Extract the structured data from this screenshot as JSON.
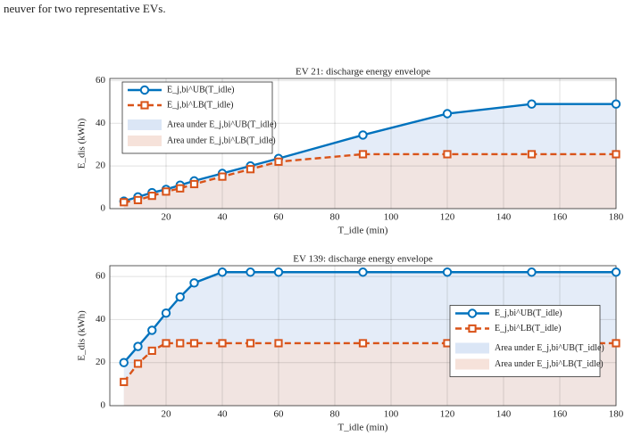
{
  "caption": "neuver for two representative EVs.",
  "chart_data": [
    {
      "type": "line",
      "title": "EV 21: discharge energy envelope",
      "x_label": "T_idle (min)",
      "y_label": "E_dis (kWh)",
      "x": [
        5,
        10,
        15,
        20,
        25,
        30,
        40,
        50,
        60,
        90,
        120,
        150,
        180
      ],
      "series": [
        {
          "name": "E_j,bi^UB(T_idle)",
          "area_label": "Area under E_j,bi^UB(T_idle)",
          "color": "#0072bd",
          "area_color": "#dbe6f6",
          "marker": "circle",
          "dash": false,
          "values": [
            3.5,
            5.5,
            7.5,
            9,
            11,
            13,
            16.5,
            20,
            23.5,
            34.5,
            44.5,
            49,
            49
          ]
        },
        {
          "name": "E_j,bi^LB(T_idle)",
          "area_label": "Area under E_j,bi^LB(T_idle)",
          "color": "#d95319",
          "area_color": "#f6e2da",
          "marker": "square",
          "dash": true,
          "values": [
            3,
            4,
            6,
            8,
            9.5,
            11.5,
            15,
            18.5,
            22,
            25.5,
            25.5,
            25.5,
            25.5
          ]
        }
      ],
      "xlim": [
        0,
        180
      ],
      "xticks": [
        20,
        40,
        60,
        80,
        100,
        120,
        140,
        160,
        180
      ],
      "ylim": [
        0,
        61
      ],
      "yticks": [
        0,
        20,
        40,
        60
      ],
      "grid": true,
      "legend": "upper left"
    },
    {
      "type": "line",
      "title": "EV 139: discharge energy envelope",
      "x_label": "T_idle (min)",
      "y_label": "E_dis (kWh)",
      "x": [
        5,
        10,
        15,
        20,
        25,
        30,
        40,
        50,
        60,
        90,
        120,
        150,
        180
      ],
      "series": [
        {
          "name": "E_j,bi^UB(T_idle)",
          "area_label": "Area under E_j,bi^UB(T_idle)",
          "color": "#0072bd",
          "area_color": "#dbe6f6",
          "marker": "circle",
          "dash": false,
          "values": [
            20,
            27.5,
            35,
            43,
            50.5,
            57,
            62,
            62,
            62,
            62,
            62,
            62,
            62
          ]
        },
        {
          "name": "E_j,bi^LB(T_idle)",
          "area_label": "Area under E_j,bi^LB(T_idle)",
          "color": "#d95319",
          "area_color": "#f6e2da",
          "marker": "square",
          "dash": true,
          "values": [
            11,
            19.5,
            25.5,
            29,
            29,
            29,
            29,
            29,
            29,
            29,
            29,
            29,
            29
          ]
        }
      ],
      "xlim": [
        0,
        180
      ],
      "xticks": [
        20,
        40,
        60,
        80,
        100,
        120,
        140,
        160,
        180
      ],
      "ylim": [
        0,
        65
      ],
      "yticks": [
        0,
        20,
        40,
        60
      ],
      "grid": true,
      "legend": "center right"
    }
  ]
}
